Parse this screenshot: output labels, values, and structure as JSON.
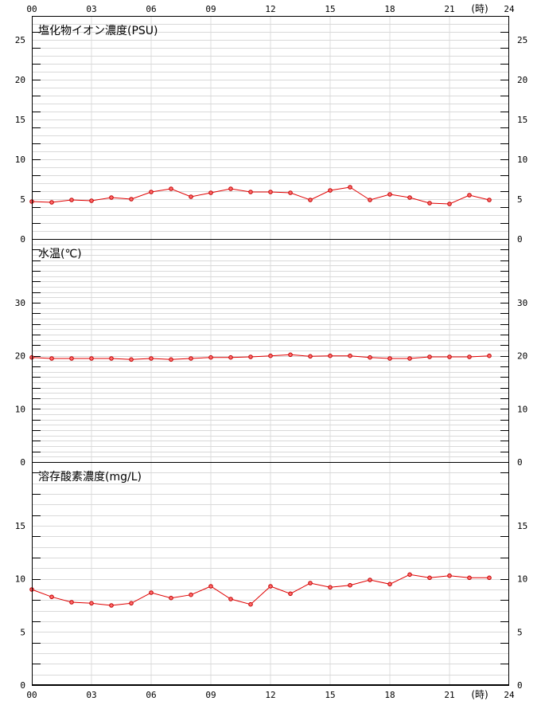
{
  "colors": {
    "series": "#e00000",
    "grid_minor": "#d9d9d9",
    "grid_vertical": "#dcdcdc",
    "axis": "#000000"
  },
  "x_axis": {
    "tick_labels": [
      "00",
      "03",
      "06",
      "09",
      "12",
      "15",
      "18",
      "21",
      "24"
    ],
    "unit_label": "(時)"
  },
  "chart_data": [
    {
      "type": "line",
      "title": "塩化物イオン濃度(PSU)",
      "ylim": [
        0,
        28
      ],
      "yticks": [
        0,
        5,
        10,
        15,
        20,
        25
      ],
      "x": [
        0,
        1,
        2,
        3,
        4,
        5,
        6,
        7,
        8,
        9,
        10,
        11,
        12,
        13,
        14,
        15,
        16,
        17,
        18,
        19,
        20,
        21,
        22,
        23
      ],
      "values": [
        4.7,
        4.6,
        4.9,
        4.8,
        5.2,
        5.0,
        5.9,
        6.3,
        5.3,
        5.8,
        6.3,
        5.9,
        5.9,
        5.8,
        4.9,
        6.1,
        6.5,
        4.9,
        5.6,
        5.2,
        4.5,
        4.4,
        5.5,
        4.9
      ]
    },
    {
      "type": "line",
      "title": "水温(℃)",
      "ylim": [
        0,
        42
      ],
      "yticks": [
        0,
        10,
        20,
        30
      ],
      "x": [
        0,
        1,
        2,
        3,
        4,
        5,
        6,
        7,
        8,
        9,
        10,
        11,
        12,
        13,
        14,
        15,
        16,
        17,
        18,
        19,
        20,
        21,
        22,
        23
      ],
      "values": [
        19.7,
        19.5,
        19.5,
        19.5,
        19.5,
        19.3,
        19.5,
        19.3,
        19.5,
        19.7,
        19.7,
        19.8,
        20.0,
        20.2,
        19.9,
        20.0,
        20.0,
        19.7,
        19.5,
        19.5,
        19.8,
        19.8,
        19.8,
        20.0
      ]
    },
    {
      "type": "line",
      "title": "溶存酸素濃度(mg/L)",
      "ylim": [
        0,
        21
      ],
      "yticks": [
        0,
        5,
        10,
        15
      ],
      "x": [
        0,
        1,
        2,
        3,
        4,
        5,
        6,
        7,
        8,
        9,
        10,
        11,
        12,
        13,
        14,
        15,
        16,
        17,
        18,
        19,
        20,
        21,
        22,
        23
      ],
      "values": [
        9.0,
        8.3,
        7.8,
        7.7,
        7.5,
        7.7,
        8.7,
        8.2,
        8.5,
        9.3,
        8.1,
        7.6,
        9.3,
        8.6,
        9.6,
        9.2,
        9.4,
        9.9,
        9.5,
        10.4,
        10.1,
        10.3,
        10.1,
        10.1
      ]
    }
  ]
}
